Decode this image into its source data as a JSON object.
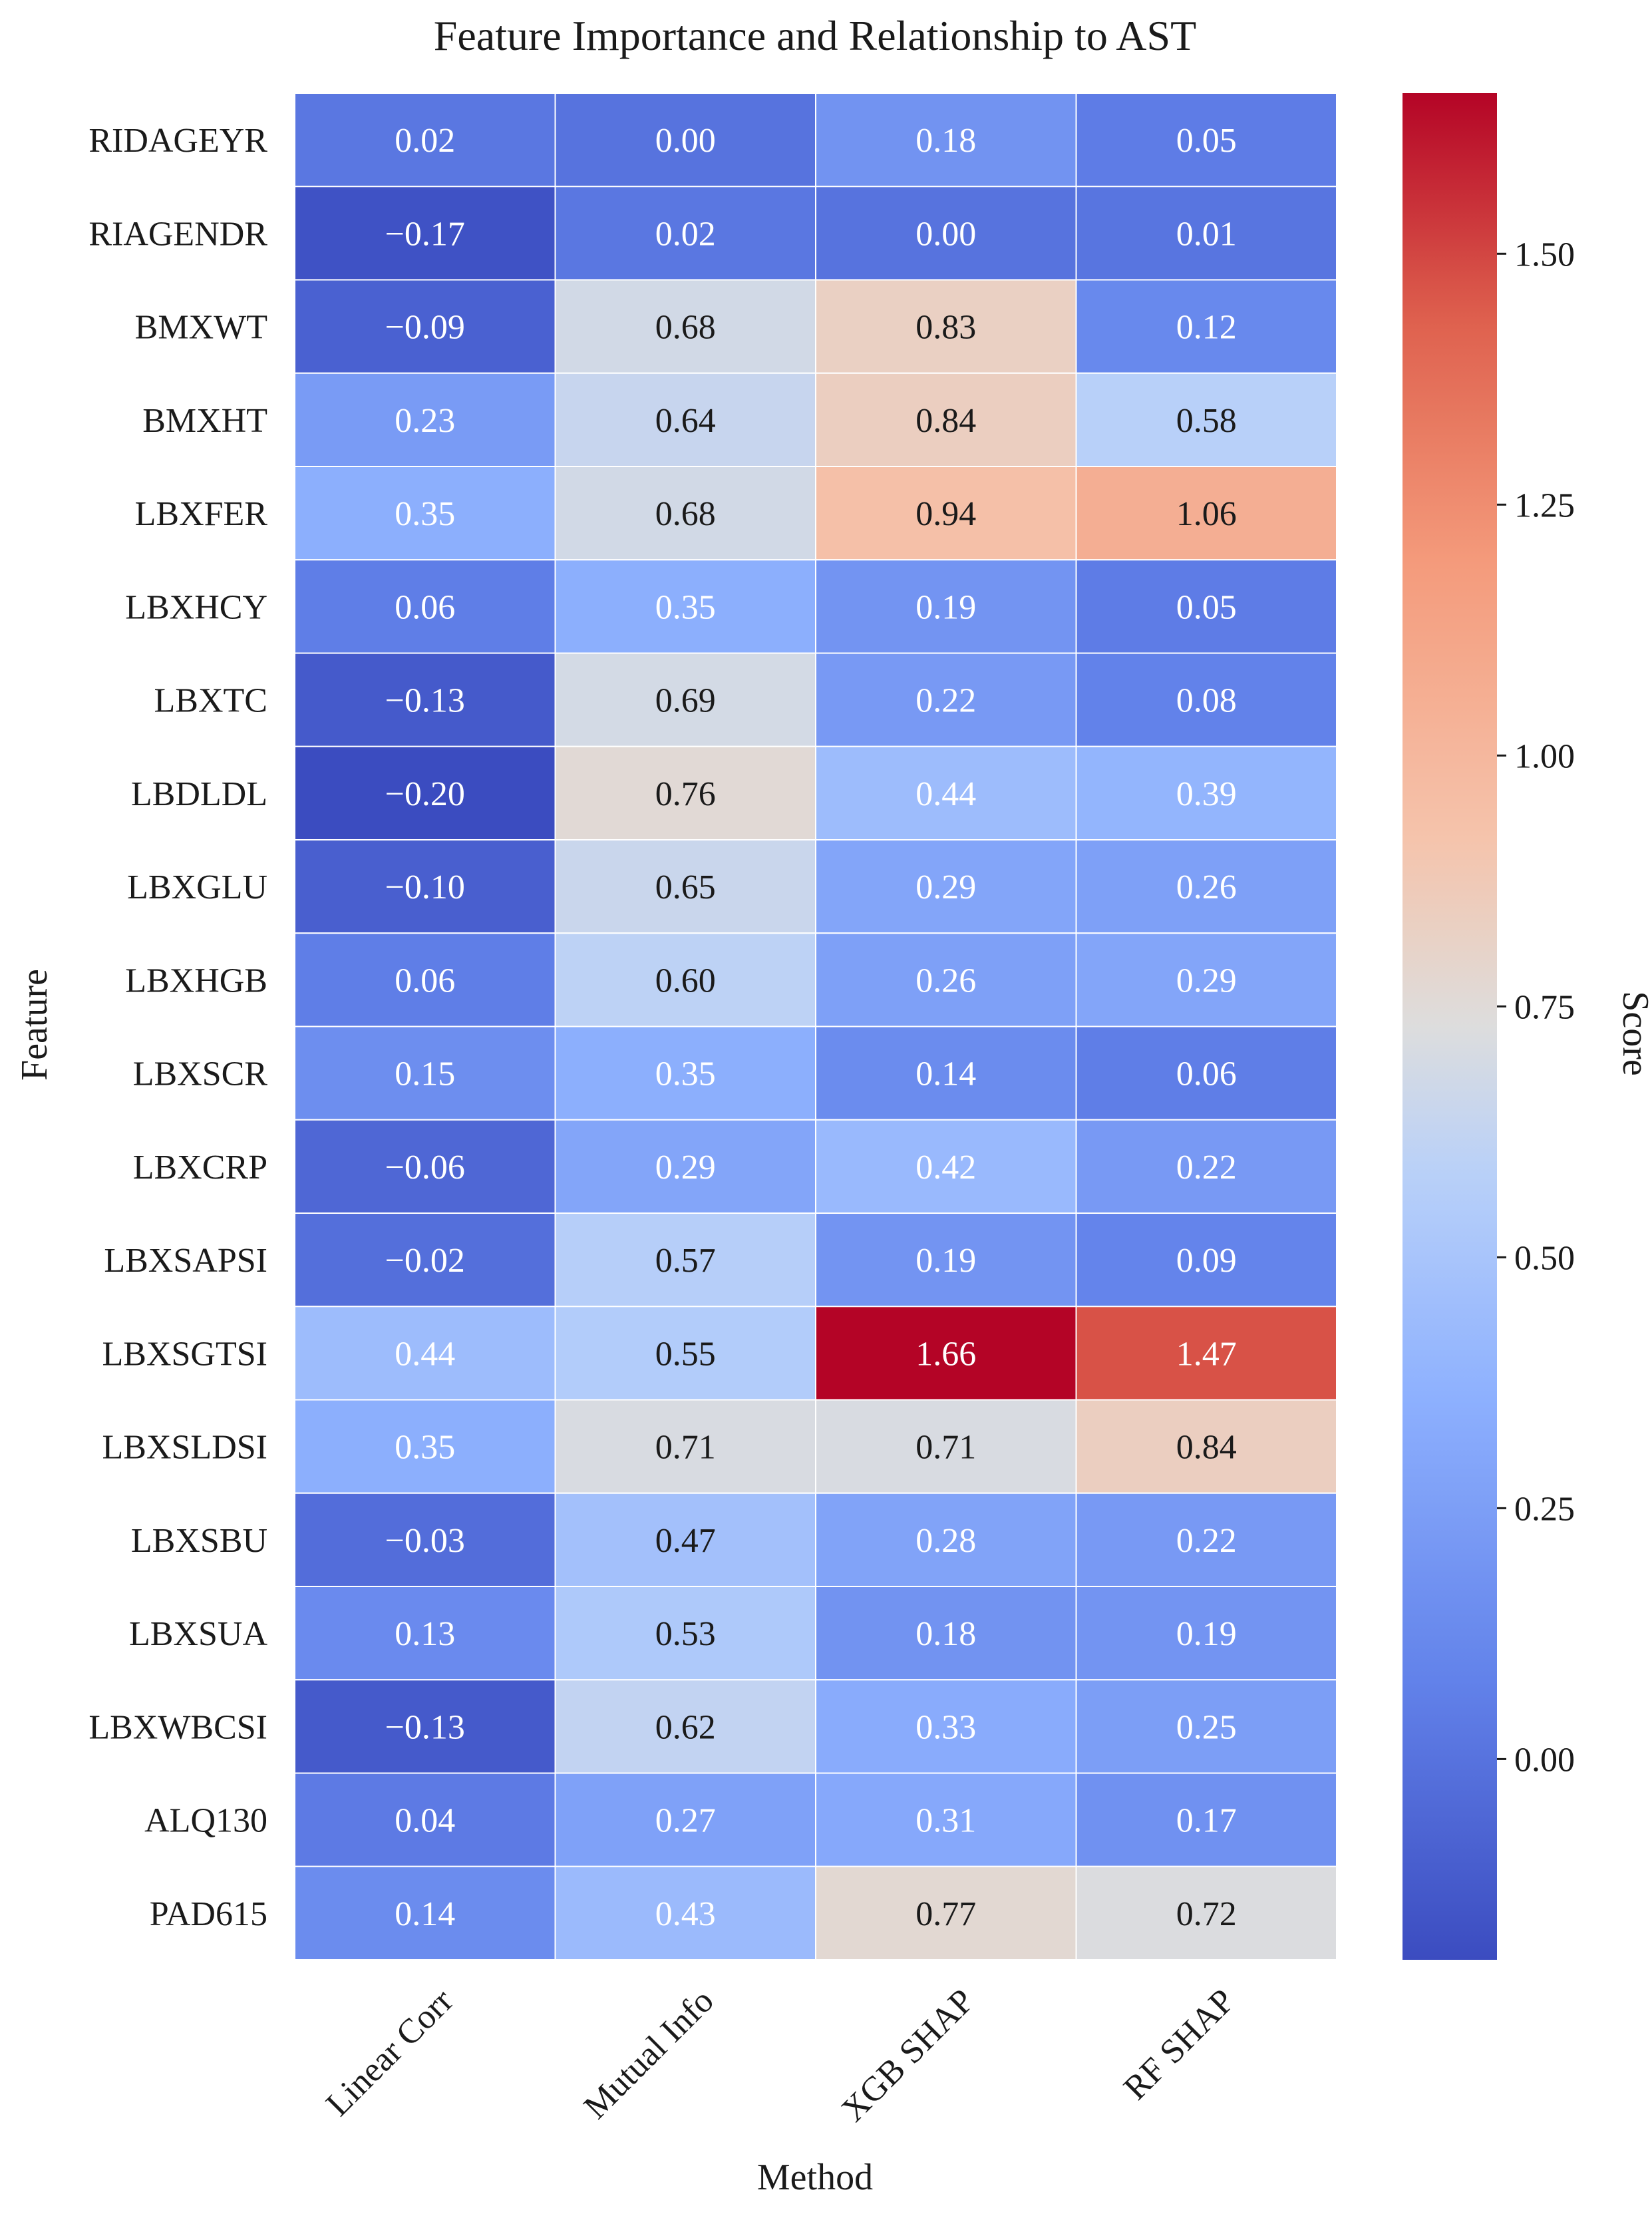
{
  "chart_data": {
    "type": "heatmap",
    "title": "Feature Importance and Relationship to AST",
    "xlabel": "Method",
    "ylabel": "Feature",
    "colorbar_label": "Score",
    "colormap": "coolwarm",
    "vmin": -0.2,
    "vmax": 1.66,
    "colorbar_ticks": [
      0.0,
      0.25,
      0.5,
      0.75,
      1.0,
      1.25,
      1.5
    ],
    "colorbar_tick_labels": [
      "0.00",
      "0.25",
      "0.50",
      "0.75",
      "1.00",
      "1.25",
      "1.50"
    ],
    "columns": [
      "Linear Corr",
      "Mutual Info",
      "XGB SHAP",
      "RF SHAP"
    ],
    "rows": [
      "RIDAGEYR",
      "RIAGENDR",
      "BMXWT",
      "BMXHT",
      "LBXFER",
      "LBXHCY",
      "LBXTC",
      "LBDLDL",
      "LBXGLU",
      "LBXHGB",
      "LBXSCR",
      "LBXCRP",
      "LBXSAPSI",
      "LBXSGTSI",
      "LBXSLDSI",
      "LBXSBU",
      "LBXSUA",
      "LBXWBCSI",
      "ALQ130",
      "PAD615"
    ],
    "values": [
      [
        0.02,
        0.0,
        0.18,
        0.05
      ],
      [
        -0.17,
        0.02,
        0.0,
        0.01
      ],
      [
        -0.09,
        0.68,
        0.83,
        0.12
      ],
      [
        0.23,
        0.64,
        0.84,
        0.58
      ],
      [
        0.35,
        0.68,
        0.94,
        1.06
      ],
      [
        0.06,
        0.35,
        0.19,
        0.05
      ],
      [
        -0.13,
        0.69,
        0.22,
        0.08
      ],
      [
        -0.2,
        0.76,
        0.44,
        0.39
      ],
      [
        -0.1,
        0.65,
        0.29,
        0.26
      ],
      [
        0.06,
        0.6,
        0.26,
        0.29
      ],
      [
        0.15,
        0.35,
        0.14,
        0.06
      ],
      [
        -0.06,
        0.29,
        0.42,
        0.22
      ],
      [
        -0.02,
        0.57,
        0.19,
        0.09
      ],
      [
        0.44,
        0.55,
        1.66,
        1.47
      ],
      [
        0.35,
        0.71,
        0.71,
        0.84
      ],
      [
        -0.03,
        0.47,
        0.28,
        0.22
      ],
      [
        0.13,
        0.53,
        0.18,
        0.19
      ],
      [
        -0.13,
        0.62,
        0.33,
        0.25
      ],
      [
        0.04,
        0.27,
        0.31,
        0.17
      ],
      [
        0.14,
        0.43,
        0.77,
        0.72
      ]
    ],
    "value_labels": [
      [
        "0.02",
        "0.00",
        "0.18",
        "0.05"
      ],
      [
        "−0.17",
        "0.02",
        "0.00",
        "0.01"
      ],
      [
        "−0.09",
        "0.68",
        "0.83",
        "0.12"
      ],
      [
        "0.23",
        "0.64",
        "0.84",
        "0.58"
      ],
      [
        "0.35",
        "0.68",
        "0.94",
        "1.06"
      ],
      [
        "0.06",
        "0.35",
        "0.19",
        "0.05"
      ],
      [
        "−0.13",
        "0.69",
        "0.22",
        "0.08"
      ],
      [
        "−0.20",
        "0.76",
        "0.44",
        "0.39"
      ],
      [
        "−0.10",
        "0.65",
        "0.29",
        "0.26"
      ],
      [
        "0.06",
        "0.60",
        "0.26",
        "0.29"
      ],
      [
        "0.15",
        "0.35",
        "0.14",
        "0.06"
      ],
      [
        "−0.06",
        "0.29",
        "0.42",
        "0.22"
      ],
      [
        "−0.02",
        "0.57",
        "0.19",
        "0.09"
      ],
      [
        "0.44",
        "0.55",
        "1.66",
        "1.47"
      ],
      [
        "0.35",
        "0.71",
        "0.71",
        "0.84"
      ],
      [
        "−0.03",
        "0.47",
        "0.28",
        "0.22"
      ],
      [
        "0.13",
        "0.53",
        "0.18",
        "0.19"
      ],
      [
        "−0.13",
        "0.62",
        "0.33",
        "0.25"
      ],
      [
        "0.04",
        "0.27",
        "0.31",
        "0.17"
      ],
      [
        "0.14",
        "0.43",
        "0.77",
        "0.72"
      ]
    ],
    "colors": {
      "cold": "#3b4cc0",
      "mid": "#dddddd",
      "hot": "#b40426",
      "text_dark": "#1a1a1a",
      "text_light": "#ffffff",
      "grid": "#ffffff"
    }
  }
}
